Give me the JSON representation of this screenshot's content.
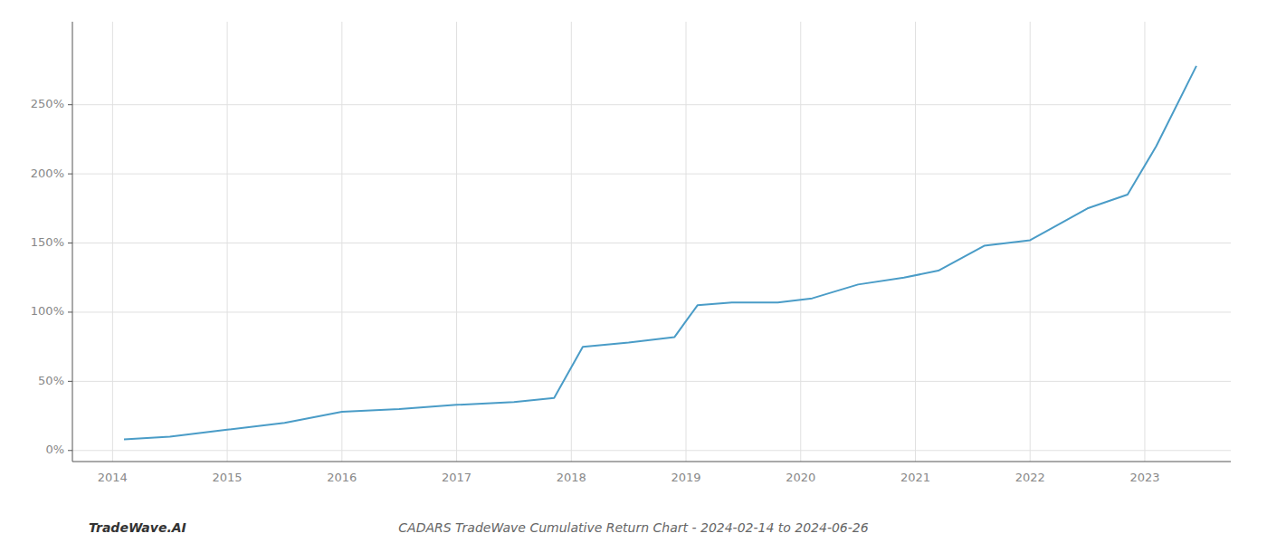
{
  "chart_data": {
    "type": "line",
    "title": "CADARS TradeWave Cumulative Return Chart - 2024-02-14 to 2024-06-26",
    "annotations": [
      "TradeWave.AI"
    ],
    "x": [
      2014.1,
      2014.5,
      2015.0,
      2015.5,
      2016.0,
      2016.5,
      2017.0,
      2017.5,
      2017.85,
      2018.1,
      2018.5,
      2018.9,
      2019.1,
      2019.4,
      2019.8,
      2020.1,
      2020.5,
      2020.9,
      2021.2,
      2021.6,
      2022.0,
      2022.5,
      2022.85,
      2023.1,
      2023.45
    ],
    "values": [
      8,
      10,
      15,
      20,
      28,
      30,
      33,
      35,
      38,
      75,
      78,
      82,
      105,
      107,
      107,
      110,
      120,
      125,
      130,
      148,
      152,
      175,
      185,
      220,
      278
    ],
    "color": "#4a9cc7",
    "xlim": [
      2013.65,
      2023.75
    ],
    "xticks": [
      2014,
      2015,
      2016,
      2017,
      2018,
      2019,
      2020,
      2021,
      2022,
      2023
    ],
    "ylim": [
      -8,
      310
    ],
    "yticks": [
      {
        "value": 0,
        "label": "0%"
      },
      {
        "value": 50,
        "label": "50%"
      },
      {
        "value": 100,
        "label": "100%"
      },
      {
        "value": 150,
        "label": "150%"
      },
      {
        "value": 200,
        "label": "200%"
      },
      {
        "value": 250,
        "label": "250%"
      }
    ],
    "grid": true
  }
}
